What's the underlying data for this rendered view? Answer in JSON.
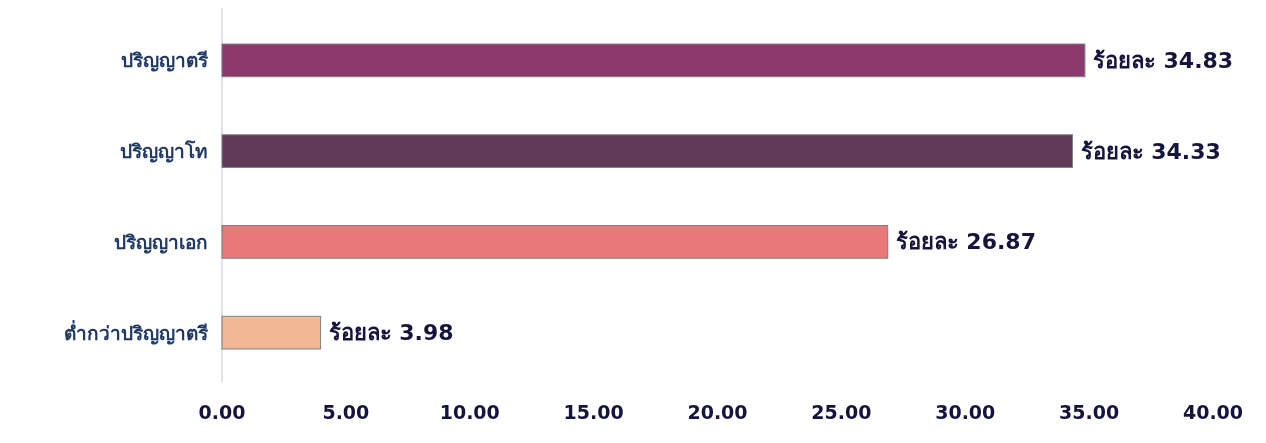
{
  "chart_data": {
    "type": "bar",
    "orientation": "horizontal",
    "categories": [
      "ปริญญาตรี",
      "ปริญญาโท",
      "ปริญญาเอก",
      "ต่ำกว่าปริญญาตรี"
    ],
    "values": [
      34.83,
      34.33,
      26.87,
      3.98
    ],
    "colors": [
      "#8c3a6e",
      "#5f3a58",
      "#e8787a",
      "#f2b795"
    ],
    "value_labels": [
      "ร้อยละ 34.83",
      "ร้อยละ 34.33",
      "ร้อยละ 26.87",
      "ร้อยละ 3.98"
    ],
    "xlim": [
      0,
      40
    ],
    "xticks": [
      {
        "value": 0,
        "label": "0.00"
      },
      {
        "value": 5,
        "label": "5.00"
      },
      {
        "value": 10,
        "label": "10.00"
      },
      {
        "value": 15,
        "label": "15.00"
      },
      {
        "value": 20,
        "label": "20.00"
      },
      {
        "value": 25,
        "label": "25.00"
      },
      {
        "value": 30,
        "label": "30.00"
      },
      {
        "value": 35,
        "label": "35.00"
      },
      {
        "value": 40,
        "label": "40.00"
      }
    ]
  }
}
